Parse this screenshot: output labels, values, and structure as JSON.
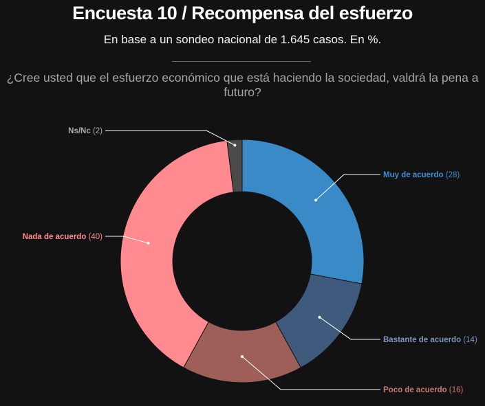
{
  "chart_data": {
    "type": "pie",
    "title": "Encuesta 10 / Recompensa del esfuerzo",
    "subtitle": "En base a un sondeo nacional de 1.645 casos. En %.",
    "question": "¿Cree usted que el esfuerzo económico que está haciendo la sociedad, valdrá la pena a futuro?",
    "donut": true,
    "slices": [
      {
        "label": "Muy de acuerdo",
        "value": 28,
        "value_text": "(28)",
        "color": "#3a8ac8",
        "label_color": "#3f8fd4"
      },
      {
        "label": "Bastante de acuerdo",
        "value": 14,
        "value_text": "(14)",
        "color": "#405a7d",
        "label_color": "#7b95bd"
      },
      {
        "label": "Poco de acuerdo",
        "value": 16,
        "value_text": "(16)",
        "color": "#9e5f59",
        "label_color": "#c97a72"
      },
      {
        "label": "Nada de acuerdo",
        "value": 40,
        "value_text": "(40)",
        "color": "#ff8a8f",
        "label_color": "#ff8a8f"
      },
      {
        "label": "Ns/Nc",
        "value": 2,
        "value_text": "(2)",
        "color": "#4a4a4a",
        "label_color": "#aaaaaa"
      }
    ]
  }
}
